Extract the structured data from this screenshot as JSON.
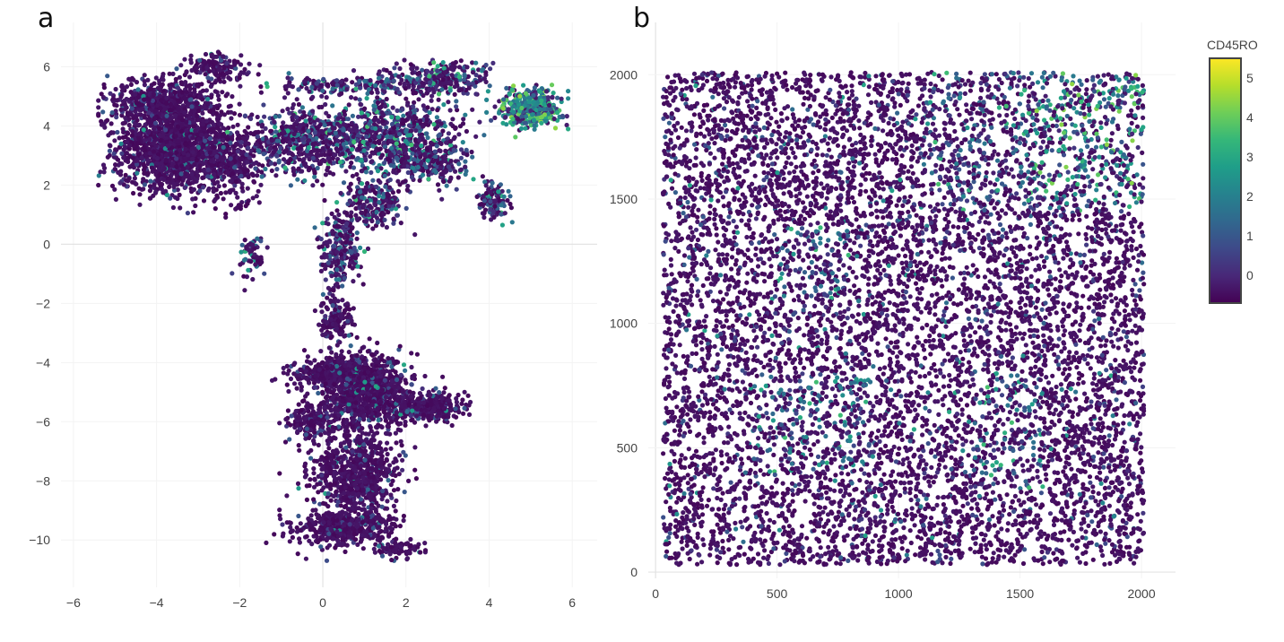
{
  "panel_labels": [
    "a",
    "b"
  ],
  "colorbar": {
    "title": "CD45RO",
    "range": [
      -0.7,
      5.5
    ],
    "ticks": [
      "0",
      "1",
      "2",
      "3",
      "4",
      "5"
    ],
    "colorscale": [
      "#440154",
      "#482878",
      "#3e4989",
      "#31688e",
      "#26828e",
      "#1f9e89",
      "#35b779",
      "#6ece58",
      "#b5de2b",
      "#fde725"
    ]
  },
  "chart_data": [
    {
      "type": "scatter",
      "panel": "a",
      "title": "",
      "xlabel": "",
      "ylabel": "",
      "xlim": [
        -6.3,
        6.6
      ],
      "ylim": [
        -11.6,
        7.5
      ],
      "xticks": [
        "−6",
        "−4",
        "−2",
        "0",
        "2",
        "4",
        "6"
      ],
      "yticks": [
        "−10",
        "−8",
        "−6",
        "−4",
        "−2",
        "0",
        "2",
        "4",
        "6"
      ],
      "zero_lines": true,
      "grid": true,
      "marker_color_scale": "viridis (CD45RO)",
      "point_count_approx": 9000,
      "clusters": [
        {
          "region": "upper-left dense lobe",
          "x_range": [
            -5.4,
            -1.5
          ],
          "y_range": [
            1.0,
            6.4
          ],
          "cd45ro_level": "low"
        },
        {
          "region": "upper band",
          "x_range": [
            -1.5,
            4.5
          ],
          "y_range": [
            0.8,
            6.2
          ],
          "cd45ro_level": "mixed"
        },
        {
          "region": "upper-right cluster",
          "x_range": [
            4.3,
            5.9
          ],
          "y_range": [
            3.8,
            5.7
          ],
          "cd45ro_level": "high"
        },
        {
          "region": "right appendage",
          "x_range": [
            3.6,
            4.6
          ],
          "y_range": [
            0.7,
            2.2
          ],
          "cd45ro_level": "mixed"
        },
        {
          "region": "stem",
          "x_range": [
            -0.6,
            1.2
          ],
          "y_range": [
            -2.5,
            1.2
          ],
          "cd45ro_level": "mixed"
        },
        {
          "region": "middle lobe",
          "x_range": [
            -1.1,
            3.4
          ],
          "y_range": [
            -6.5,
            -2.0
          ],
          "cd45ro_level": "low"
        },
        {
          "region": "lower lobe",
          "x_range": [
            -1.2,
            2.5
          ],
          "y_range": [
            -10.7,
            -6.2
          ],
          "cd45ro_level": "low"
        }
      ]
    },
    {
      "type": "scatter",
      "panel": "b",
      "title": "",
      "xlabel": "",
      "ylabel": "",
      "xlim": [
        -30,
        2140
      ],
      "ylim": [
        -25,
        2210
      ],
      "xticks": [
        "0",
        "500",
        "1000",
        "1500",
        "2000"
      ],
      "yticks": [
        "0",
        "500",
        "1000",
        "1500",
        "2000"
      ],
      "zero_lines": true,
      "grid": true,
      "marker_color_scale": "viridis (CD45RO)",
      "point_count_approx": 9000,
      "x_extent": [
        30,
        2010
      ],
      "y_extent": [
        30,
        2010
      ],
      "high_expression_regions": [
        {
          "x_range": [
            1100,
            2010
          ],
          "y_range": [
            1450,
            2010
          ]
        },
        {
          "x_range": [
            500,
            800
          ],
          "y_range": [
            1100,
            1400
          ]
        },
        {
          "x_range": [
            1300,
            1600
          ],
          "y_range": [
            300,
            800
          ]
        },
        {
          "x_range": [
            400,
            900
          ],
          "y_range": [
            400,
            800
          ]
        }
      ]
    }
  ]
}
